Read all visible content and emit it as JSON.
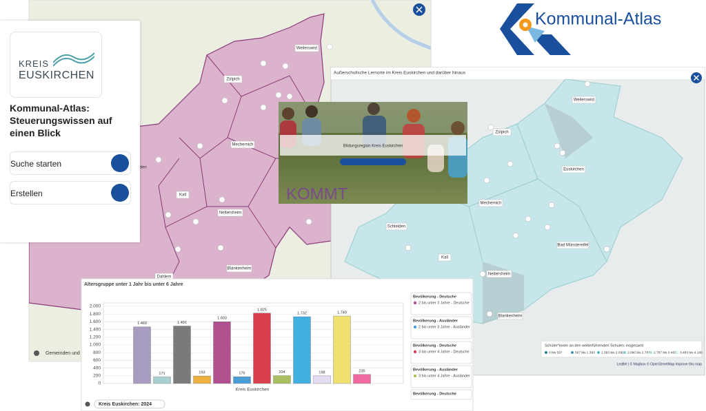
{
  "logo": {
    "text": "Kommunal-Atlas"
  },
  "panel": {
    "brand_top": "KREIS",
    "brand_bottom": "EUSKIRCHEN",
    "title": "Kommunal-Atlas: Steuerungswissen auf einen Blick",
    "buttons": [
      "Suche starten",
      "Erstellen"
    ]
  },
  "map_left": {
    "places": [
      "Weilerswist",
      "Zülpich",
      "Mechernich",
      "lden",
      "Kall",
      "Nettersheim",
      "Blankenheim",
      "Dahlem"
    ],
    "footer": "Gemeinden und S"
  },
  "promo": {
    "headline": "Bildungsregion Kreis Euskirchen",
    "banner": "KOMMT"
  },
  "map_right": {
    "title": "Außerschulische Lernorte im Kreis Euskirchen und darüber hinaus",
    "places": [
      "Weilerswist",
      "Zülpich",
      "Euskirchen",
      "Mechernich",
      "Schleiden",
      "Bad Münstereifel",
      "Kall",
      "Nettersheim",
      "Blankenheim"
    ],
    "legend": {
      "title": "Schüler*innen an den weiterführenden Schulen: insgesamt",
      "items": [
        {
          "label": "0 bis 597",
          "color": "#2f7f8f"
        },
        {
          "label": "597 bis 1.393",
          "color": "#3f9aa8"
        },
        {
          "label": "1.393 bis 2.090",
          "color": "#5fb3bf"
        },
        {
          "label": "2.090 bis 2.787",
          "color": "#86c9d2"
        },
        {
          "label": "2.787 bis 3.483",
          "color": "#aedce2"
        },
        {
          "label": "3.483 bis 4.180",
          "color": "#d3eef1"
        }
      ]
    },
    "attribution": "Leaflet | © Mapbox © OpenStreetMap Improve this map"
  },
  "chart_data": {
    "type": "bar",
    "title": "Altersgruppe unter 1 Jahr bis unter 6 Jahre",
    "x_label": "Kreis Euskirchen",
    "values": [
      1469,
      171,
      1491,
      193,
      1603,
      176,
      1825,
      204,
      1732,
      198,
      1749,
      235
    ],
    "value_labels": [
      "1.469",
      "171",
      "1.491",
      "193",
      "1.603",
      "176",
      "1.825",
      "204",
      "1.732",
      "198",
      "1.749",
      "235"
    ],
    "colors": [
      "#a89bc0",
      "#a8d0d0",
      "#7a7a7a",
      "#f0b040",
      "#b0508f",
      "#4a9ed8",
      "#d84050",
      "#a8c060",
      "#40b0e0",
      "#e4dcf2",
      "#f0e070",
      "#f06aa0"
    ],
    "ylim": [
      0,
      2000
    ],
    "yticks": [
      0,
      200,
      400,
      600,
      800,
      {
        "value": 1000,
        "label": "1.000"
      },
      {
        "value": 1200,
        "label": "1.200"
      },
      {
        "value": 1400,
        "label": "1.400"
      },
      {
        "value": 1600,
        "label": "1.600"
      },
      {
        "value": 1800,
        "label": "1.800"
      },
      {
        "value": 2000,
        "label": "2.000"
      }
    ],
    "grid": true,
    "legend": [
      {
        "group": "Bevölkerung - Deutsche",
        "label": "2 bis unter 3 Jahre - Deutsche",
        "color": "#b0508f"
      },
      {
        "group": "Bevölkerung - Ausländer",
        "label": "2 bis unter 3 Jahre - Ausländer",
        "color": "#4a9ed8"
      },
      {
        "group": "Bevölkerung - Deutsche",
        "label": "3 bis unter 4 Jahre - Deutsche",
        "color": "#d84050"
      },
      {
        "group": "Bevölkerung - Ausländer",
        "label": "3 bis unter 4 Jahre - Ausländer",
        "color": "#a8c060"
      },
      {
        "group": "Bevölkerung - Deutsche"
      }
    ],
    "footer": "Kreis Euskirchen: 2024"
  }
}
